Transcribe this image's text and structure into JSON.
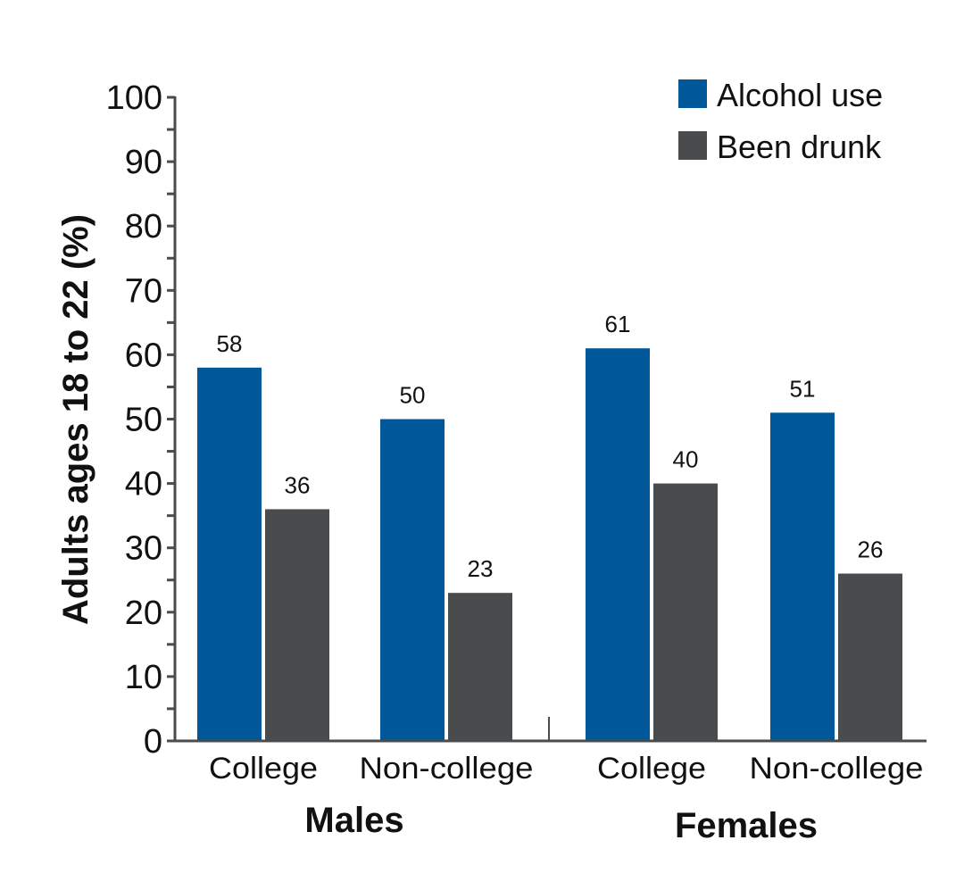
{
  "chart_data": {
    "type": "bar",
    "title": "",
    "xlabel": "",
    "ylabel": "Adults ages 18 to 22 (%)",
    "ylim": [
      0,
      100
    ],
    "yticks": [
      "0",
      "10",
      "20",
      "30",
      "40",
      "50",
      "60",
      "70",
      "80",
      "90",
      "100"
    ],
    "grid": false,
    "legend_position": "top-right",
    "groups": [
      {
        "label": "Males",
        "categories": [
          "College",
          "Non-college"
        ]
      },
      {
        "label": "Females",
        "categories": [
          "College",
          "Non-college"
        ]
      }
    ],
    "categories": [
      "College",
      "Non-college",
      "College",
      "Non-college"
    ],
    "series": [
      {
        "name": "Alcohol use",
        "color": "#00589a",
        "values": [
          58,
          50,
          61,
          51
        ]
      },
      {
        "name": "Been drunk",
        "color": "#4a4b4d",
        "values": [
          36,
          23,
          40,
          26
        ]
      }
    ]
  }
}
